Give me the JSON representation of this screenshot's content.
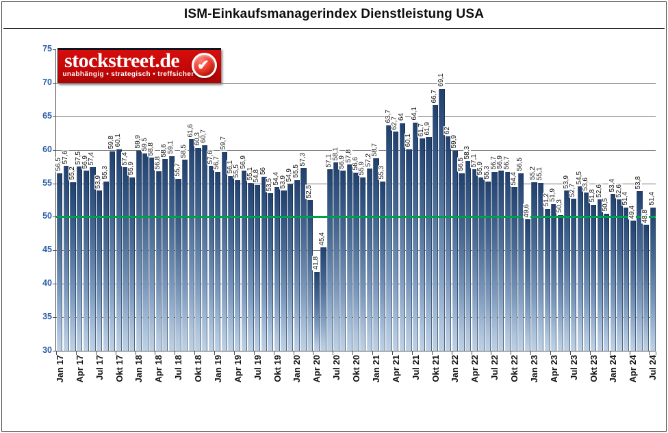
{
  "title": "ISM-Einkaufsmanagerindex Dienstleistung USA",
  "logo": {
    "brand": "stockstreet.de",
    "tagline": "unabhängig • strategisch • treffsicher",
    "checkmark_icon": "✔"
  },
  "chart_data": {
    "type": "bar",
    "title": "ISM-Einkaufsmanagerindex Dienstleistung USA",
    "x_frequency": "monthly",
    "x_start": "Jan 17",
    "x_end": "Jul 24",
    "values": [
      56.5,
      57.6,
      55.2,
      57.5,
      56.9,
      57.4,
      53.9,
      55.3,
      59.8,
      60.1,
      57.4,
      55.9,
      59.9,
      59.5,
      58.8,
      56.8,
      58.6,
      59.1,
      55.7,
      58.5,
      61.6,
      60.3,
      60.7,
      57.6,
      56.7,
      59.7,
      56.1,
      55.5,
      56.9,
      55.1,
      54.8,
      56,
      53.5,
      54.4,
      53.9,
      54.9,
      55.5,
      57.3,
      52.5,
      41.8,
      45.4,
      57.1,
      58.1,
      56.9,
      57.8,
      56.6,
      55.9,
      57.2,
      58.7,
      55.3,
      63.7,
      62.7,
      64,
      60.1,
      64.1,
      61.7,
      61.9,
      66.7,
      69.1,
      62,
      59.9,
      56.5,
      58.3,
      57.1,
      55.9,
      55.3,
      56.7,
      56.9,
      56.7,
      54.4,
      56.5,
      49.6,
      55.2,
      55.1,
      51.2,
      51.9,
      50.3,
      53.9,
      52.7,
      54.5,
      53.6,
      51.8,
      52.6,
      50.5,
      53.4,
      52.6,
      51.4,
      49.4,
      53.8,
      48.8,
      51.4
    ],
    "value_label_style": "rotated-90-german-decimal-comma",
    "xticks": [
      "Jan 17",
      "Apr 17",
      "Jul 17",
      "Okt 17",
      "Jan 18",
      "Apr 18",
      "Jul 18",
      "Okt 18",
      "Jan 19",
      "Apr 19",
      "Jul 19",
      "Okt 19",
      "Jan 20",
      "Apr 20",
      "Jul 20",
      "Okt 20",
      "Jan 21",
      "Apr 21",
      "Jul 21",
      "Okt 21",
      "Jan 22",
      "Apr 22",
      "Jul 22",
      "Okt 22",
      "Jan 23",
      "Apr 23",
      "Jul 23",
      "Okt 23",
      "Jan 24",
      "Apr 24",
      "Jul 24"
    ],
    "yticks": [
      30,
      35,
      40,
      45,
      50,
      55,
      60,
      65,
      70,
      75
    ],
    "ylim": [
      30,
      75
    ],
    "gridlines": [
      35,
      40,
      45,
      50,
      55,
      60,
      65,
      70
    ],
    "grid": true,
    "legend": null,
    "reference_line": {
      "value": 50,
      "color": "#00A14B"
    },
    "colors": {
      "bar_top": "#21406B",
      "bar_bottom": "#BDD0E4",
      "y_axis_label": "#2A5CAA",
      "x_axis_label": "#141414",
      "value_label": "#111111",
      "gridline": "#6E6E6E",
      "axis": "#4D4D4D",
      "logo_background": "#C50707"
    }
  }
}
